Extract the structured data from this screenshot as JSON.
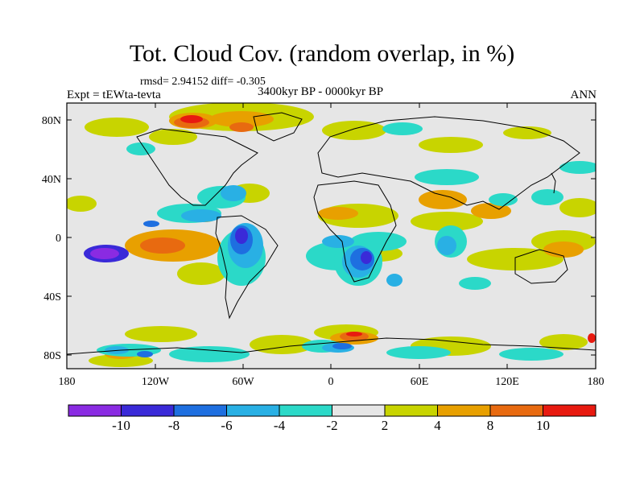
{
  "header": {
    "title": "Tot. Cloud Cov. (random overlap, in %)",
    "stats": "rmsd= 2.94152 diff= -0.305",
    "experiment": "Expt = tEWta-tevta",
    "period": "3400kyr BP - 0000kyr BP",
    "season": "ANN"
  },
  "axes": {
    "y_ticks": [
      "80N",
      "40N",
      "0",
      "40S",
      "80S"
    ],
    "x_ticks": [
      "180",
      "120W",
      "60W",
      "0",
      "60E",
      "120E",
      "180"
    ]
  },
  "colorbar": {
    "labels": [
      "-10",
      "-8",
      "-6",
      "-4",
      "-2",
      "2",
      "4",
      "8",
      "10"
    ],
    "colors": [
      "#8a2be2",
      "#3a2ad8",
      "#1e6fe0",
      "#29b0e4",
      "#2bd9c8",
      "#e6e6e6",
      "#c8d400",
      "#e8a000",
      "#e86a10",
      "#e81a10"
    ]
  },
  "map": {
    "background": "#e6e6e6",
    "palette": {
      "neg10": "#8a2be2",
      "neg8": "#3a2ad8",
      "neg6": "#1e6fe0",
      "neg4": "#29b0e4",
      "neg2": "#2bd9c8",
      "pos2": "#c8d400",
      "pos4": "#e8a000",
      "pos8": "#e86a10",
      "pos10": "#e81a10"
    }
  }
}
